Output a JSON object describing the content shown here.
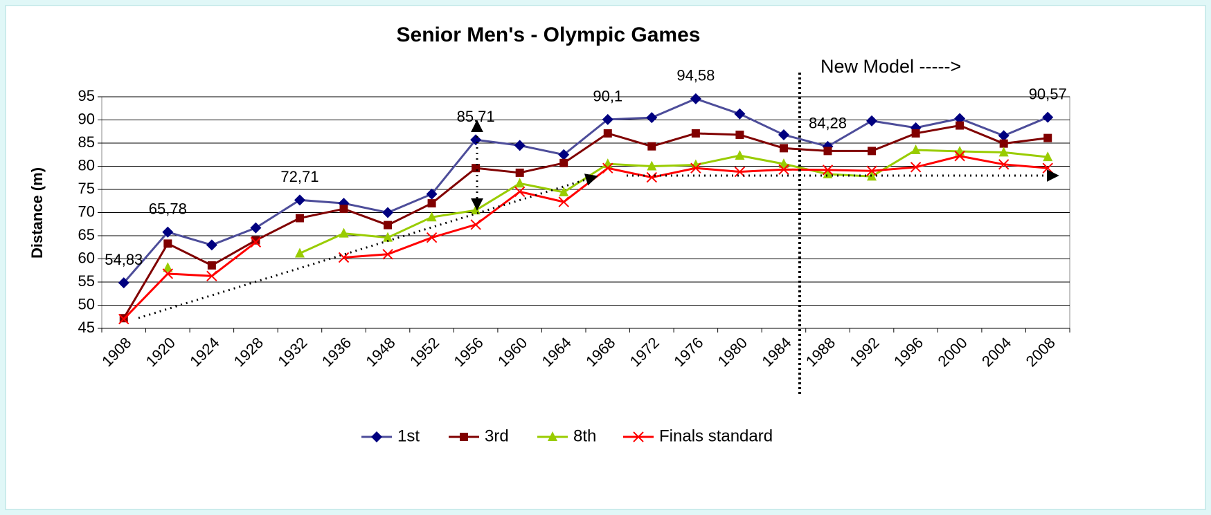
{
  "chart_data": {
    "type": "line",
    "title": "Senior Men's - Olympic Games",
    "y_label": "Distance (m)",
    "annotation": "New Model ----->",
    "categories": [
      "1908",
      "1920",
      "1924",
      "1928",
      "1932",
      "1936",
      "1948",
      "1952",
      "1956",
      "1960",
      "1964",
      "1968",
      "1972",
      "1976",
      "1980",
      "1984",
      "1988",
      "1992",
      "1996",
      "2000",
      "2004",
      "2008"
    ],
    "series": [
      {
        "name": "1st",
        "color": "#4d4d9a",
        "marker_color": "#000080",
        "marker": "diamond",
        "values": [
          54.83,
          65.78,
          63,
          66.7,
          72.71,
          72,
          70,
          74,
          85.71,
          84.5,
          82.5,
          90.1,
          90.5,
          94.58,
          91.3,
          86.8,
          84.28,
          89.8,
          88.3,
          90.3,
          86.6,
          90.57
        ],
        "value_labels": [
          "54,83",
          "65,78",
          null,
          null,
          "72,71",
          null,
          null,
          null,
          "85,71",
          null,
          null,
          "90,1",
          null,
          "94,58",
          null,
          null,
          "84,28",
          null,
          null,
          null,
          null,
          "90,57"
        ]
      },
      {
        "name": "3rd",
        "color": "#800000",
        "marker_color": "#800000",
        "marker": "square",
        "values": [
          47.2,
          63.3,
          58.6,
          64,
          68.8,
          70.8,
          67.3,
          72,
          79.6,
          78.6,
          80.7,
          87.1,
          84.3,
          87.1,
          86.8,
          83.9,
          83.3,
          83.3,
          87.1,
          88.8,
          84.9,
          86.1
        ]
      },
      {
        "name": "8th",
        "color": "#99cc00",
        "marker_color": "#99cc00",
        "marker": "triangle",
        "values": [
          null,
          58.1,
          null,
          null,
          61.2,
          65.5,
          64.6,
          69,
          70.5,
          76.3,
          74.4,
          80.5,
          80,
          80.3,
          82.3,
          80.5,
          78.3,
          77.8,
          83.5,
          83.2,
          83,
          82
        ]
      },
      {
        "name": "Finals standard",
        "color": "#ff0000",
        "marker_color": "#ff0000",
        "marker": "x",
        "values": [
          47,
          56.8,
          56.3,
          63.6,
          null,
          60.3,
          61,
          64.6,
          67.4,
          74.5,
          72.3,
          79.6,
          77.6,
          79.6,
          78.8,
          79.3,
          79.2,
          79,
          79.8,
          82.2,
          80.4,
          79.6
        ]
      }
    ],
    "ylim": [
      45,
      95
    ],
    "yticks": [
      45,
      50,
      55,
      60,
      65,
      70,
      75,
      80,
      85,
      90,
      95
    ],
    "grid": true,
    "legend": "bottom"
  }
}
